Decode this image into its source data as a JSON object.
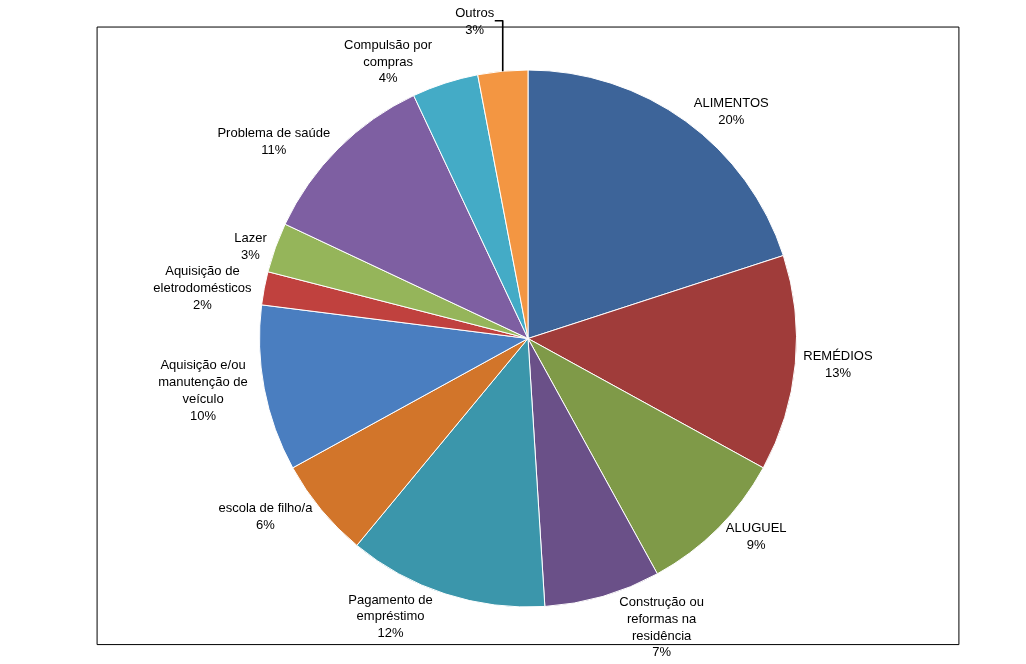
{
  "chart_data": {
    "type": "pie",
    "categories": [
      "ALIMENTOS",
      "REMÉDIOS",
      "ALUGUEL",
      "Construção ou\nreformas na\nresidência",
      "Pagamento de\nempréstimo",
      "escola de filho/a",
      "Aquisição e/ou\nmanutenção de\nveículo",
      "Aquisição de\neletrodomésticos",
      "Lazer",
      "Problema de saúde",
      "Compulsão por\ncompras",
      "Outros"
    ],
    "values": [
      20,
      13,
      9,
      7,
      12,
      6,
      10,
      2,
      3,
      11,
      4,
      3
    ],
    "value_labels": [
      "20%",
      "13%",
      "9%",
      "7%",
      "12%",
      "6%",
      "10%",
      "2%",
      "3%",
      "11%",
      "4%",
      "3%"
    ],
    "colors": [
      "#3d6499",
      "#a03c3a",
      "#7f9a48",
      "#6a5088",
      "#3b96ab",
      "#d2752a",
      "#4a7ec0",
      "#c0413e",
      "#95b55a",
      "#7e5fa2",
      "#44abc6",
      "#f39642"
    ],
    "legend": false
  }
}
